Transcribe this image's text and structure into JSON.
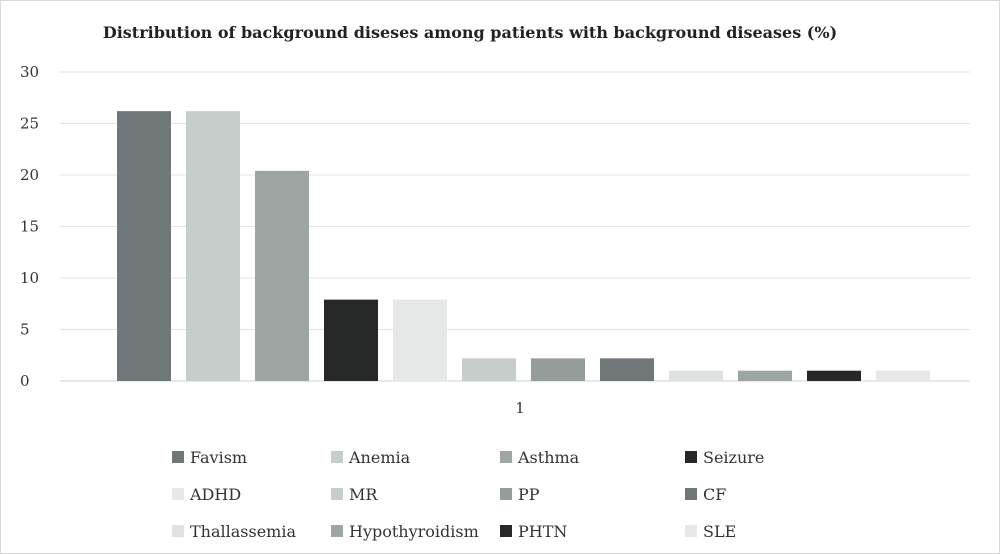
{
  "chart_data": {
    "type": "bar",
    "title": "Distribution of background diseses among patients with background diseases (%)",
    "xlabel": "",
    "ylabel": "",
    "categories": [
      "1"
    ],
    "ylim": [
      0,
      30
    ],
    "yticks": [
      0,
      5,
      10,
      15,
      20,
      25,
      30
    ],
    "grid": true,
    "legend_position": "bottom",
    "series": [
      {
        "name": "Favism",
        "values": [
          26.2
        ],
        "color": "#6f7779"
      },
      {
        "name": "Anemia",
        "values": [
          26.2
        ],
        "color": "#c5cecb"
      },
      {
        "name": "Asthma",
        "values": [
          20.4
        ],
        "color": "#9ea6a3"
      },
      {
        "name": "Seizure",
        "values": [
          7.9
        ],
        "color": "#262828"
      },
      {
        "name": "ADHD",
        "values": [
          7.9
        ],
        "color": "#e6e8e8"
      },
      {
        "name": "MR",
        "values": [
          2.2
        ],
        "color": "#c5cecb"
      },
      {
        "name": "PP",
        "values": [
          2.2
        ],
        "color": "#959d9b"
      },
      {
        "name": "CF",
        "values": [
          2.2
        ],
        "color": "#6f7779"
      },
      {
        "name": "Thallassemia",
        "values": [
          1.0
        ],
        "color": "#dee3e1"
      },
      {
        "name": "Hypothyroidism",
        "values": [
          1.0
        ],
        "color": "#9ea6a3"
      },
      {
        "name": "PHTN",
        "values": [
          1.0
        ],
        "color": "#262828"
      },
      {
        "name": "SLE",
        "values": [
          1.0
        ],
        "color": "#e6e8e8"
      }
    ]
  }
}
